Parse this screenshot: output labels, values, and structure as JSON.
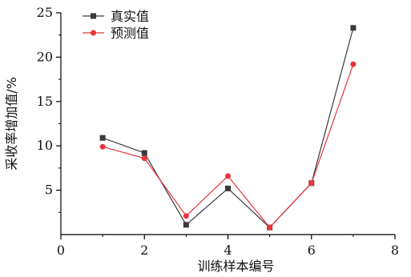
{
  "chart_data": {
    "type": "line",
    "title": "",
    "xlabel": "训练样本编号",
    "ylabel": "采收率增加值/%",
    "xlim": [
      0,
      8
    ],
    "ylim": [
      0,
      25
    ],
    "x_ticks": [
      "0",
      "2",
      "4",
      "6",
      "8"
    ],
    "y_ticks": [
      "5",
      "10",
      "15",
      "20",
      "25"
    ],
    "grid": false,
    "legend_position": "top-left",
    "x": [
      1,
      2,
      3,
      4,
      5,
      6,
      7
    ],
    "series": [
      {
        "name": "真实值",
        "marker": "square",
        "color": "#3a3a3a",
        "values": [
          10.9,
          9.2,
          1.1,
          5.2,
          0.8,
          5.8,
          23.3
        ]
      },
      {
        "name": "预测值",
        "marker": "circle",
        "color": "#e8343a",
        "values": [
          9.9,
          8.6,
          2.1,
          6.6,
          0.8,
          5.8,
          19.2
        ]
      }
    ]
  }
}
